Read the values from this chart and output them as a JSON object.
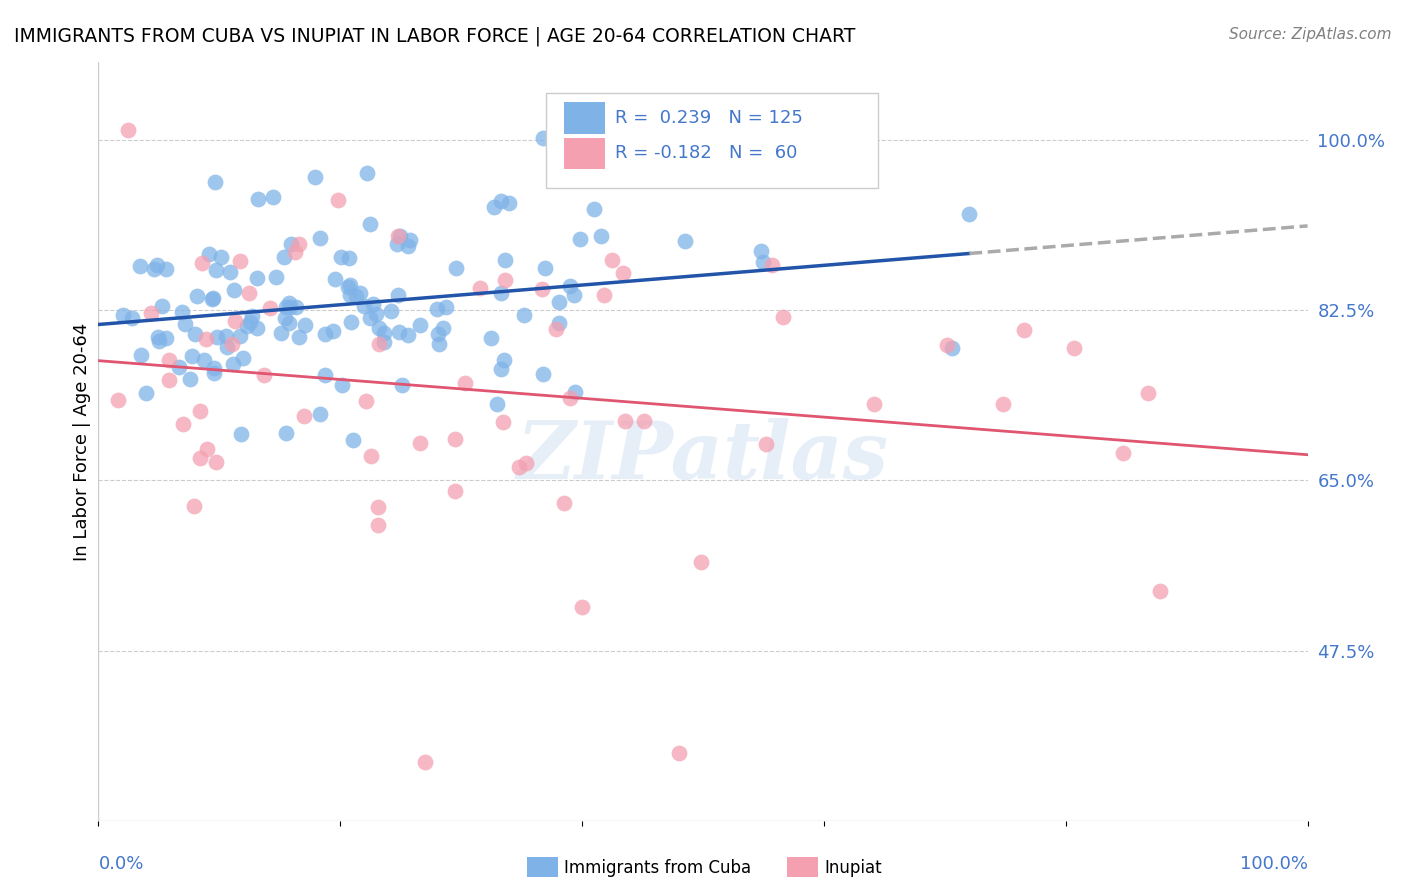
{
  "title": "IMMIGRANTS FROM CUBA VS INUPIAT IN LABOR FORCE | AGE 20-64 CORRELATION CHART",
  "source": "Source: ZipAtlas.com",
  "ylabel": "In Labor Force | Age 20-64",
  "y_tick_vals": [
    0.475,
    0.65,
    0.825,
    1.0
  ],
  "y_tick_labels": [
    "47.5%",
    "65.0%",
    "82.5%",
    "100.0%"
  ],
  "xlim": [
    0.0,
    1.0
  ],
  "ylim": [
    0.3,
    1.08
  ],
  "blue_color": "#7fb3e8",
  "pink_color": "#f4a0b0",
  "blue_line_color": "#2255aa",
  "pink_line_color": "#e05570",
  "dash_line_color": "#aaaaaa",
  "legend_text_color": "#4477cc",
  "grid_color": "#cccccc",
  "watermark": "ZIPatlas",
  "R_cuba": 0.239,
  "N_cuba": 125,
  "R_inupiat": -0.182,
  "N_inupiat": 60,
  "seed": 42
}
